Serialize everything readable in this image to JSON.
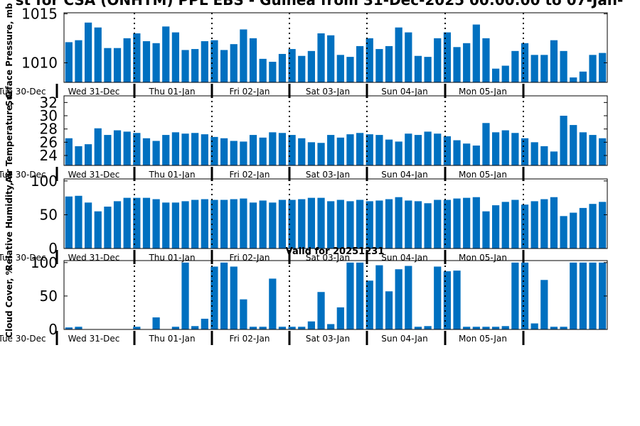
{
  "title": "st for CSA (ONHTM) PPL EBS - Guinea from 31-Dec-2025 00:00:00 to 07-Jan-",
  "subtitle": "Valid for 20251231",
  "colors": {
    "bar": "#0070c0",
    "axis": "#000000",
    "text": "#000000"
  },
  "day_labels": [
    "Tue 30-Dec",
    "Wed 31-Dec",
    "Thu 01-Jan",
    "Fri 02-Jan",
    "Sat 03-Jan",
    "Sun 04-Jan",
    "Mon 05-Jan"
  ],
  "chart_data": [
    {
      "type": "bar",
      "ylabel": "Surface Pressure, mb",
      "ylim": [
        1008.0,
        1015.1
      ],
      "yticks": [
        1010,
        1015
      ],
      "values": [
        1012.1,
        1012.3,
        1014.1,
        1013.6,
        1011.5,
        1011.5,
        1012.5,
        1013.0,
        1012.2,
        1012.0,
        1013.7,
        1013.1,
        1011.3,
        1011.4,
        1012.2,
        1012.3,
        1011.3,
        1011.9,
        1013.4,
        1012.5,
        1010.4,
        1010.1,
        1010.9,
        1011.4,
        1010.7,
        1011.2,
        1013.0,
        1012.8,
        1010.8,
        1010.6,
        1011.7,
        1012.5,
        1011.4,
        1011.7,
        1013.6,
        1013.1,
        1010.7,
        1010.6,
        1012.5,
        1013.1,
        1011.6,
        1012.0,
        1013.9,
        1012.5,
        1009.4,
        1009.7,
        1011.2,
        1012.0,
        1010.8,
        1010.8,
        1012.3,
        1011.2,
        1008.5,
        1009.1,
        1010.8,
        1011.0
      ]
    },
    {
      "type": "bar",
      "ylabel": "Air Temperature, C",
      "ylim": [
        22.5,
        33.0
      ],
      "yticks": [
        24,
        26,
        28,
        30,
        32
      ],
      "values": [
        26.6,
        25.4,
        25.7,
        28.1,
        27.1,
        27.8,
        27.6,
        27.4,
        26.6,
        26.2,
        27.1,
        27.5,
        27.3,
        27.4,
        27.2,
        26.8,
        26.6,
        26.2,
        26.1,
        27.1,
        26.7,
        27.5,
        27.4,
        27.1,
        26.6,
        26.0,
        25.9,
        27.1,
        26.7,
        27.2,
        27.4,
        27.2,
        27.1,
        26.4,
        26.1,
        27.3,
        27.1,
        27.6,
        27.3,
        26.9,
        26.3,
        25.8,
        25.5,
        28.9,
        27.5,
        27.8,
        27.4,
        26.6,
        26.0,
        25.4,
        24.6,
        30.0,
        28.6,
        27.5,
        27.1,
        26.6
      ]
    },
    {
      "type": "bar",
      "ylabel": "Relative Humidity, %",
      "ylim": [
        0,
        103
      ],
      "yticks": [
        0,
        50,
        100
      ],
      "values": [
        77,
        78,
        68,
        55,
        62,
        70,
        75,
        75,
        75,
        73,
        68,
        68,
        70,
        72,
        73,
        72,
        72,
        73,
        74,
        68,
        71,
        68,
        72,
        72,
        73,
        75,
        75,
        70,
        72,
        70,
        72,
        70,
        71,
        73,
        76,
        71,
        70,
        67,
        72,
        72,
        74,
        75,
        76,
        55,
        64,
        69,
        72,
        65,
        70,
        73,
        76,
        48,
        53,
        60,
        66,
        69
      ]
    },
    {
      "type": "bar",
      "ylabel": "Cloud Cover, %",
      "title": "Valid for 20251231",
      "ylim": [
        0,
        103
      ],
      "yticks": [
        0,
        50,
        100
      ],
      "values": [
        3,
        4,
        0,
        0,
        0,
        0,
        0,
        4,
        0,
        18,
        0,
        4,
        100,
        5,
        16,
        94,
        100,
        94,
        45,
        4,
        4,
        76,
        4,
        4,
        4,
        12,
        56,
        8,
        33,
        100,
        100,
        73,
        96,
        57,
        90,
        95,
        4,
        5,
        94,
        87,
        88,
        4,
        4,
        4,
        4,
        5,
        100,
        100,
        9,
        74,
        4,
        4,
        100,
        100,
        100,
        100
      ]
    }
  ]
}
